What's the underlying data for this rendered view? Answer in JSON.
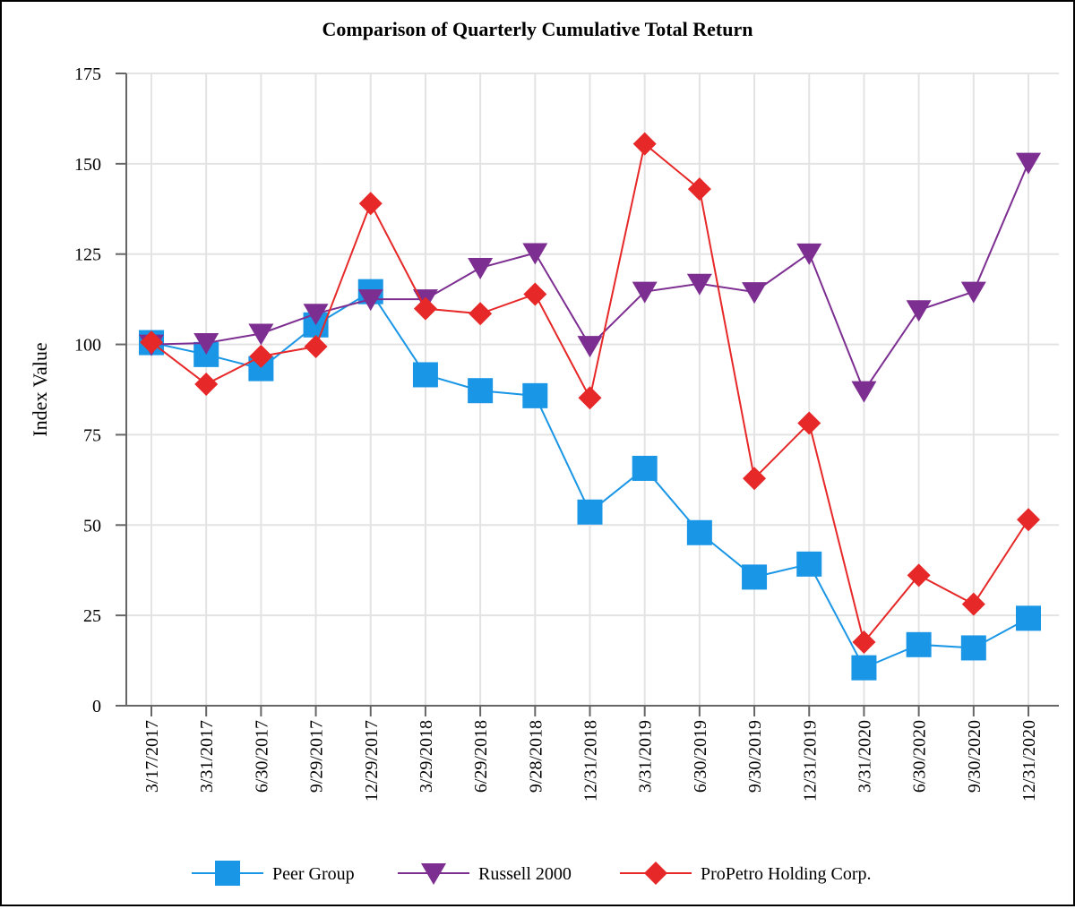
{
  "chart_data": {
    "type": "line",
    "title": "Comparison of Quarterly Cumulative Total Return",
    "xlabel": "",
    "ylabel": "Index Value",
    "ylim": [
      0,
      175
    ],
    "yticks": [
      0,
      25,
      50,
      75,
      100,
      125,
      150,
      175
    ],
    "grid": true,
    "legend_position": "bottom",
    "categories": [
      "3/17/2017",
      "3/31/2017",
      "6/30/2017",
      "9/29/2017",
      "12/29/2017",
      "3/29/2018",
      "6/29/2018",
      "9/28/2018",
      "12/31/2018",
      "3/31/2019",
      "6/30/2019",
      "9/30/2019",
      "12/31/2019",
      "3/31/2020",
      "6/30/2020",
      "9/30/2020",
      "12/31/2020"
    ],
    "series": [
      {
        "name": "Peer Group",
        "color": "#1a96e6",
        "marker": "square",
        "values": [
          100.5,
          97.2,
          93.3,
          105.4,
          114.6,
          91.6,
          87.2,
          85.8,
          53.6,
          65.7,
          47.9,
          35.6,
          39.2,
          10.5,
          16.9,
          16.0,
          24.2
        ]
      },
      {
        "name": "Russell 2000",
        "color": "#7d2e91",
        "marker": "triangle-down",
        "values": [
          100.0,
          100.4,
          103.0,
          108.5,
          112.5,
          112.5,
          121.2,
          125.3,
          99.6,
          114.6,
          116.8,
          114.5,
          125.2,
          87.1,
          109.5,
          114.6,
          150.3
        ]
      },
      {
        "name": "ProPetro Holding Corp.",
        "color": "#e62828",
        "marker": "diamond",
        "values": [
          100.6,
          89.0,
          96.7,
          99.4,
          139.0,
          109.9,
          108.5,
          113.9,
          85.2,
          155.5,
          143.0,
          62.9,
          78.2,
          17.6,
          36.1,
          28.1,
          51.5
        ]
      }
    ]
  }
}
